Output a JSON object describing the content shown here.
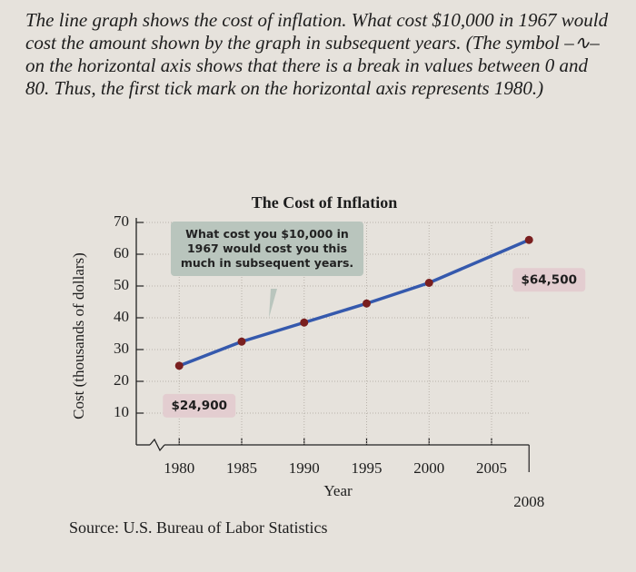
{
  "intro": "The line graph shows the cost of inflation. What cost $10,000 in 1967 would cost the amount shown by the graph in subsequent years. (The symbol –∿– on the horizontal axis shows that there is a break in values between 0 and 80. Thus, the first tick mark on the horizontal axis represents 1980.)",
  "chart_data": {
    "type": "line",
    "title": "The Cost of Inflation",
    "x": [
      1980,
      1985,
      1990,
      1995,
      2000,
      2008
    ],
    "values": [
      24.9,
      32.5,
      38.5,
      44.5,
      51,
      64.5
    ],
    "value_labels": [
      "$24,900",
      null,
      null,
      null,
      null,
      "$64,500"
    ],
    "color": "#3559ad",
    "marker_color": "#7a1f1f",
    "xlim": [
      1977,
      2009
    ],
    "xticks": [
      1980,
      1985,
      1990,
      1995,
      2000,
      2005,
      2008
    ],
    "ylim": [
      0,
      70
    ],
    "yticks": [
      10,
      20,
      30,
      40,
      50,
      60,
      70
    ],
    "grid": true,
    "x_label": "Year",
    "y_label": "Cost (thousands of dollars)",
    "annotation": "What cost you $10,000 in 1967 would cost you this much in subsequent years.",
    "source": "Source: U.S. Bureau of Labor Statistics"
  }
}
